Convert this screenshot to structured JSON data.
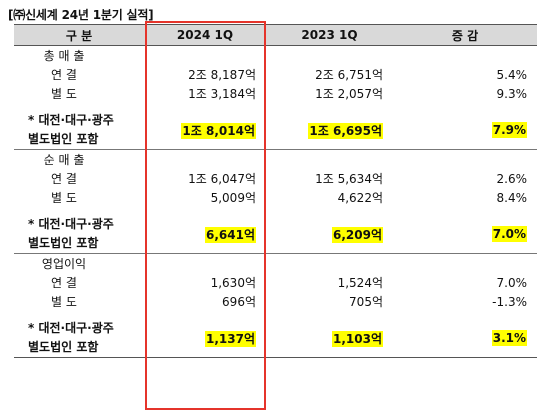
{
  "title": "[㈜신세계 24년 1분기 실적]",
  "header": [
    "구 분",
    "2024 1Q",
    "2023 1Q",
    "증 감"
  ],
  "highlight_color": "#ffff00",
  "box_color": "#e5342b",
  "sections": [
    {
      "name": "총 매 출",
      "rows": [
        {
          "label": "연 결",
          "v2024": "2조 8,187억",
          "v2023": "2조 6,751억",
          "chg": "5.4%"
        },
        {
          "label": "별 도",
          "v2024": "1조 3,184억",
          "v2023": "1조 2,057억",
          "chg": "9.3%"
        }
      ],
      "note_line1": "* 대전·대구·광주",
      "note_line2": "별도법인 포함",
      "note_v2024": "1조 8,014억",
      "note_v2023": "1조 6,695억",
      "note_chg": "7.9%"
    },
    {
      "name": "순 매 출",
      "rows": [
        {
          "label": "연 결",
          "v2024": "1조 6,047억",
          "v2023": "1조 5,634억",
          "chg": "2.6%"
        },
        {
          "label": "별 도",
          "v2024": "5,009억",
          "v2023": "4,622억",
          "chg": "8.4%"
        }
      ],
      "note_line1": "* 대전·대구·광주",
      "note_line2": "별도법인 포함",
      "note_v2024": "6,641억",
      "note_v2023": "6,209억",
      "note_chg": "7.0%"
    },
    {
      "name": "영업이익",
      "rows": [
        {
          "label": "연 결",
          "v2024": "1,630억",
          "v2023": "1,524억",
          "chg": "7.0%"
        },
        {
          "label": "별 도",
          "v2024": "696억",
          "v2023": "705억",
          "chg": "-1.3%"
        }
      ],
      "note_line1": "* 대전·대구·광주",
      "note_line2": "별도법인 포함",
      "note_v2024": "1,137억",
      "note_v2023": "1,103억",
      "note_chg": "3.1%"
    }
  ]
}
